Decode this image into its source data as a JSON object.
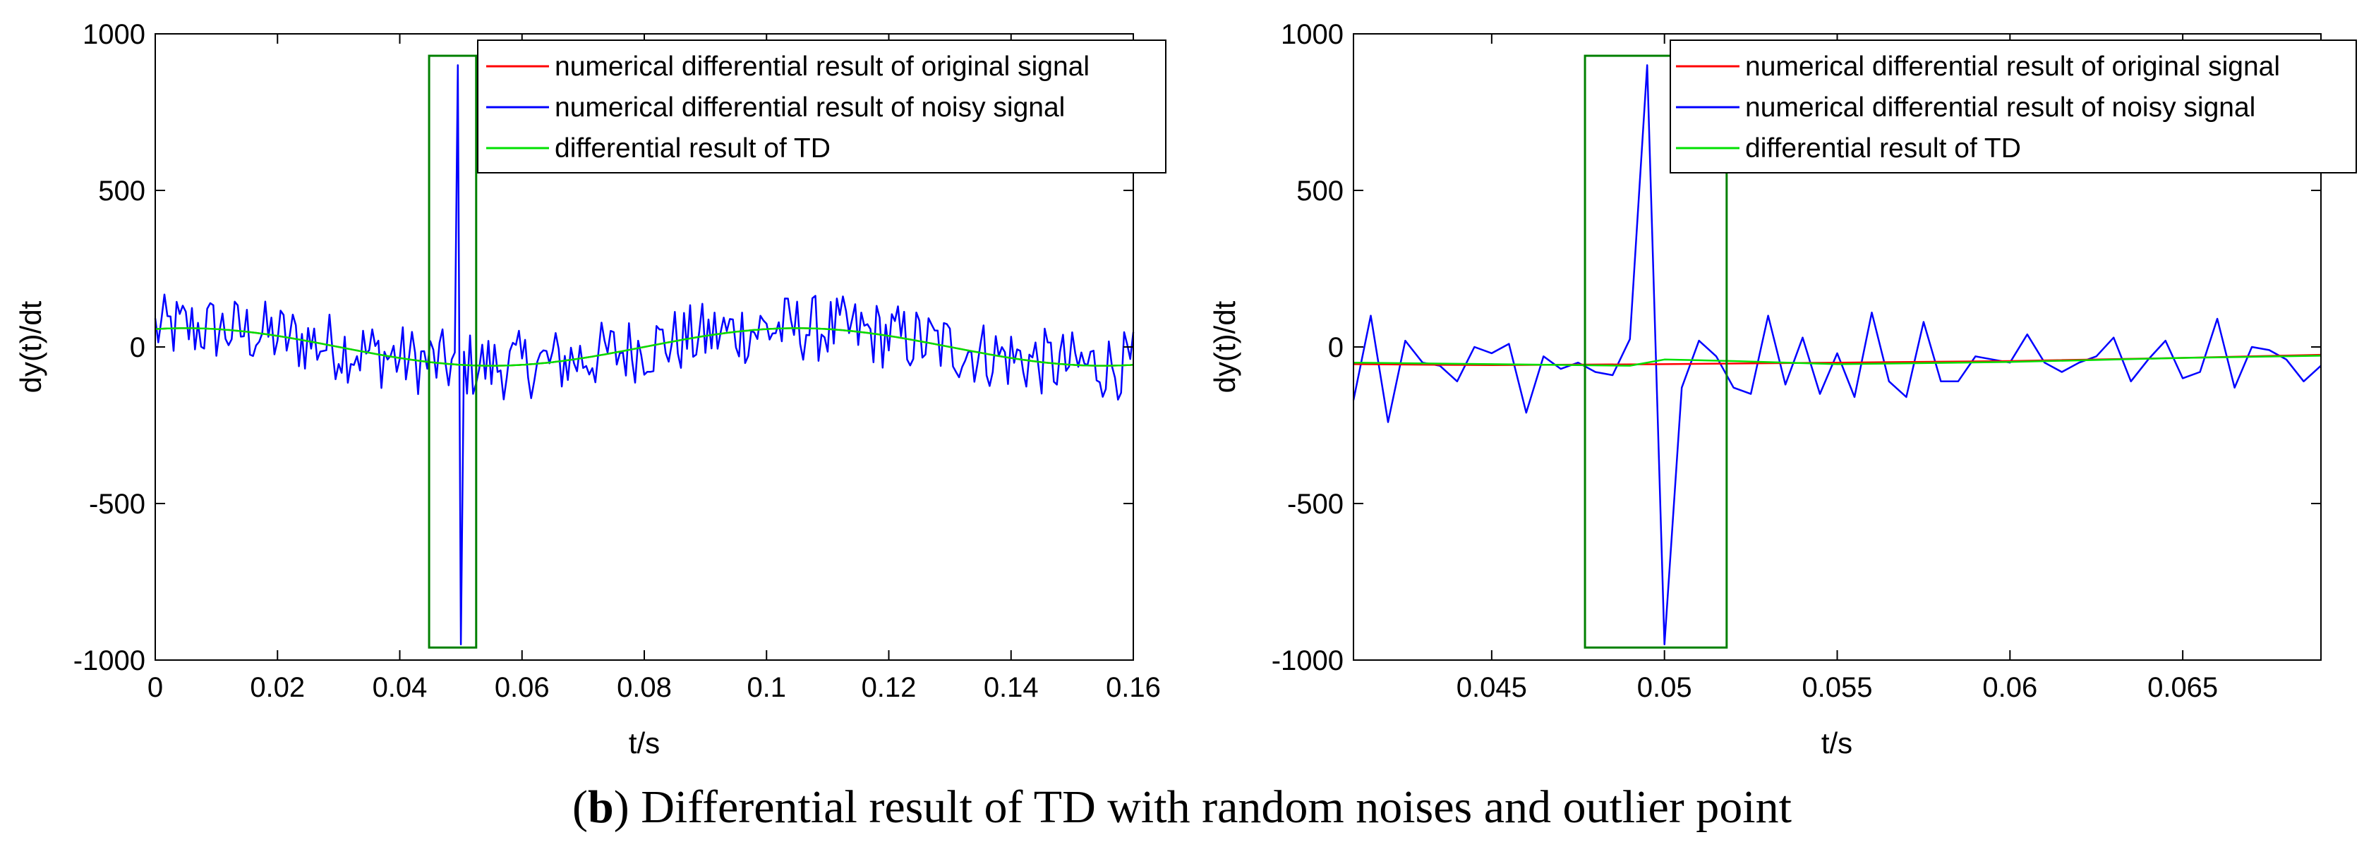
{
  "caption": {
    "bold": "b",
    "text": "Differential result of TD with random noises and outlier point"
  },
  "colors": {
    "original": "#ff0000",
    "noisy": "#0000ff",
    "td": "#00e000",
    "box": "#008000"
  },
  "chart_data": [
    {
      "type": "line",
      "title": "",
      "xlabel": "t/s",
      "ylabel": "dy(t)/dt",
      "xlim": [
        0,
        0.16
      ],
      "ylim": [
        -1000,
        1000
      ],
      "xticks": [
        0,
        0.02,
        0.04,
        0.06,
        0.08,
        0.1,
        0.12,
        0.14,
        0.16
      ],
      "xtick_labels": [
        "0",
        "0.02",
        "0.04",
        "0.06",
        "0.08",
        "0.1",
        "0.12",
        "0.14",
        "0.16"
      ],
      "yticks": [
        1000,
        500,
        0,
        -500,
        -1000
      ],
      "ytick_labels": [
        "1000",
        "500",
        "0",
        "-500",
        "-1000"
      ],
      "grid": false,
      "legend_position": "top-right",
      "highlight_box": {
        "x": [
          0.0448,
          0.0525
        ],
        "y": [
          -960,
          930
        ]
      },
      "series": [
        {
          "name": "numerical differential result of original signal",
          "color": "#ff0000",
          "model": {
            "kind": "sine",
            "amp": 60,
            "period": 0.1,
            "phase_at": 0.005,
            "start": 65,
            "noise": 0
          }
        },
        {
          "name": "numerical differential result of noisy signal",
          "color": "#0000ff",
          "model": {
            "kind": "sine",
            "amp": 60,
            "period": 0.1,
            "phase_at": 0.005,
            "noise": 110,
            "dt": 0.0005,
            "outlier_t": 0.05,
            "outlier_values": [
              900,
              -950
            ]
          }
        },
        {
          "name": "differential result of TD",
          "color": "#00e000",
          "model": {
            "kind": "sine",
            "amp": 60,
            "period": 0.1,
            "phase_at": 0.005,
            "start": 0,
            "noise": 0
          }
        }
      ]
    },
    {
      "type": "line",
      "title": "",
      "xlabel": "t/s",
      "ylabel": "dy(t)/dt",
      "xlim": [
        0.041,
        0.069
      ],
      "ylim": [
        -1000,
        1000
      ],
      "xticks": [
        0.045,
        0.05,
        0.055,
        0.06,
        0.065
      ],
      "xtick_labels": [
        "0.045",
        "0.05",
        "0.055",
        "0.06",
        "0.065"
      ],
      "yticks": [
        1000,
        500,
        0,
        -500,
        -1000
      ],
      "ytick_labels": [
        "1000",
        "500",
        "0",
        "-500",
        "-1000"
      ],
      "grid": false,
      "legend_position": "top-right",
      "highlight_box": {
        "x": [
          0.0477,
          0.0518
        ],
        "y": [
          -960,
          930
        ]
      },
      "series": [
        {
          "name": "numerical differential result of original signal",
          "color": "#ff0000",
          "x": [
            0.041,
            0.045,
            0.05,
            0.055,
            0.06,
            0.065,
            0.069
          ],
          "y": [
            -55,
            -58,
            -55,
            -50,
            -45,
            -35,
            -25
          ]
        },
        {
          "name": "numerical differential result of noisy signal",
          "color": "#0000ff",
          "x": [
            0.041,
            0.0415,
            0.042,
            0.0425,
            0.043,
            0.0435,
            0.044,
            0.0445,
            0.045,
            0.0455,
            0.046,
            0.0465,
            0.047,
            0.0475,
            0.048,
            0.0485,
            0.049,
            0.0495,
            0.05,
            0.0505,
            0.051,
            0.0515,
            0.052,
            0.0525,
            0.053,
            0.0535,
            0.054,
            0.0545,
            0.055,
            0.0555,
            0.056,
            0.0565,
            0.057,
            0.0575,
            0.058,
            0.0585,
            0.059,
            0.0595,
            0.06,
            0.0605,
            0.061,
            0.0615,
            0.062,
            0.0625,
            0.063,
            0.0635,
            0.064,
            0.0645,
            0.065,
            0.0655,
            0.066,
            0.0665,
            0.067,
            0.0675,
            0.068,
            0.0685,
            0.069
          ],
          "y": [
            -170,
            100,
            -240,
            20,
            -50,
            -60,
            -110,
            0,
            -20,
            10,
            -210,
            -30,
            -70,
            -50,
            -80,
            -90,
            25,
            900,
            -950,
            -130,
            20,
            -30,
            -130,
            -150,
            100,
            -120,
            30,
            -150,
            -20,
            -160,
            110,
            -110,
            -160,
            80,
            -110,
            -110,
            -30,
            -40,
            -50,
            40,
            -50,
            -80,
            -50,
            -30,
            30,
            -110,
            -40,
            20,
            -100,
            -80,
            90,
            -130,
            0,
            -10,
            -40,
            -110,
            -60
          ]
        },
        {
          "name": "differential result of TD",
          "color": "#00e000",
          "x": [
            0.041,
            0.045,
            0.049,
            0.05,
            0.052,
            0.055,
            0.06,
            0.065,
            0.069
          ],
          "y": [
            -50,
            -55,
            -60,
            -40,
            -45,
            -55,
            -48,
            -35,
            -28
          ]
        }
      ]
    }
  ]
}
